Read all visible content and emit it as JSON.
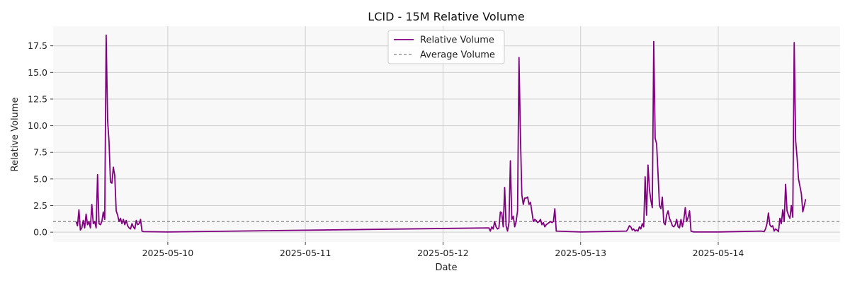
{
  "chart_data": {
    "type": "line",
    "title": "LCID - 15M Relative Volume",
    "xlabel": "Date",
    "ylabel": "Relative Volume",
    "x_type": "date",
    "xlim": [
      "2025-05-09 04:00",
      "2025-05-14 21:15"
    ],
    "ylim": [
      -0.92,
      19.34
    ],
    "x_ticks": [
      "2025-05-10",
      "2025-05-11",
      "2025-05-12",
      "2025-05-13",
      "2025-05-14"
    ],
    "y_ticks": [
      0.0,
      2.5,
      5.0,
      7.5,
      10.0,
      12.5,
      15.0,
      17.5
    ],
    "y_tick_labels": [
      "0.0",
      "2.5",
      "5.0",
      "7.5",
      "10.0",
      "12.5",
      "15.0",
      "17.5"
    ],
    "grid": true,
    "legend_position": "top-center",
    "series": [
      {
        "name": "Relative Volume",
        "color": "#800080",
        "style": "solid",
        "points": [
          [
            "2025-05-09 08:00",
            1.0
          ],
          [
            "2025-05-09 08:15",
            0.6
          ],
          [
            "2025-05-09 08:30",
            2.1
          ],
          [
            "2025-05-09 08:45",
            0.2
          ],
          [
            "2025-05-09 09:00",
            0.4
          ],
          [
            "2025-05-09 09:15",
            1.1
          ],
          [
            "2025-05-09 09:30",
            0.4
          ],
          [
            "2025-05-09 09:45",
            1.7
          ],
          [
            "2025-05-09 10:00",
            0.7
          ],
          [
            "2025-05-09 10:15",
            1.0
          ],
          [
            "2025-05-09 10:30",
            0.4
          ],
          [
            "2025-05-09 10:45",
            2.6
          ],
          [
            "2025-05-09 11:00",
            0.8
          ],
          [
            "2025-05-09 11:15",
            1.0
          ],
          [
            "2025-05-09 11:30",
            0.4
          ],
          [
            "2025-05-09 11:45",
            5.4
          ],
          [
            "2025-05-09 12:00",
            0.8
          ],
          [
            "2025-05-09 12:15",
            0.7
          ],
          [
            "2025-05-09 12:30",
            1.0
          ],
          [
            "2025-05-09 12:45",
            1.9
          ],
          [
            "2025-05-09 13:00",
            1.2
          ],
          [
            "2025-05-09 13:15",
            18.5
          ],
          [
            "2025-05-09 13:30",
            10.5
          ],
          [
            "2025-05-09 13:45",
            8.5
          ],
          [
            "2025-05-09 14:00",
            4.7
          ],
          [
            "2025-05-09 14:15",
            4.6
          ],
          [
            "2025-05-09 14:30",
            6.1
          ],
          [
            "2025-05-09 14:45",
            5.3
          ],
          [
            "2025-05-09 15:00",
            2.0
          ],
          [
            "2025-05-09 15:15",
            1.6
          ],
          [
            "2025-05-09 15:30",
            1.0
          ],
          [
            "2025-05-09 15:45",
            1.3
          ],
          [
            "2025-05-09 16:00",
            0.8
          ],
          [
            "2025-05-09 16:15",
            1.2
          ],
          [
            "2025-05-09 16:30",
            0.7
          ],
          [
            "2025-05-09 16:45",
            1.1
          ],
          [
            "2025-05-09 17:00",
            0.6
          ],
          [
            "2025-05-09 17:15",
            0.4
          ],
          [
            "2025-05-09 17:30",
            0.3
          ],
          [
            "2025-05-09 17:45",
            0.8
          ],
          [
            "2025-05-09 18:00",
            0.5
          ],
          [
            "2025-05-09 18:15",
            0.3
          ],
          [
            "2025-05-09 18:30",
            1.1
          ],
          [
            "2025-05-09 18:45",
            0.7
          ],
          [
            "2025-05-09 19:00",
            0.8
          ],
          [
            "2025-05-09 19:15",
            1.2
          ],
          [
            "2025-05-09 19:30",
            0.1
          ],
          [
            "2025-05-09 19:45",
            0.05
          ],
          [
            "2025-05-10 00:00",
            0.02
          ],
          [
            "2025-05-12 08:00",
            0.4
          ],
          [
            "2025-05-12 08:15",
            0.1
          ],
          [
            "2025-05-12 08:30",
            0.5
          ],
          [
            "2025-05-12 08:45",
            0.3
          ],
          [
            "2025-05-12 09:00",
            1.0
          ],
          [
            "2025-05-12 09:15",
            0.5
          ],
          [
            "2025-05-12 09:30",
            0.3
          ],
          [
            "2025-05-12 09:45",
            0.4
          ],
          [
            "2025-05-12 10:00",
            1.9
          ],
          [
            "2025-05-12 10:15",
            1.8
          ],
          [
            "2025-05-12 10:30",
            0.5
          ],
          [
            "2025-05-12 10:45",
            4.2
          ],
          [
            "2025-05-12 11:00",
            0.6
          ],
          [
            "2025-05-12 11:15",
            0.1
          ],
          [
            "2025-05-12 11:30",
            0.9
          ],
          [
            "2025-05-12 11:45",
            6.7
          ],
          [
            "2025-05-12 12:00",
            1.2
          ],
          [
            "2025-05-12 12:15",
            1.5
          ],
          [
            "2025-05-12 12:30",
            0.5
          ],
          [
            "2025-05-12 12:45",
            1.0
          ],
          [
            "2025-05-12 13:00",
            2.0
          ],
          [
            "2025-05-12 13:15",
            16.4
          ],
          [
            "2025-05-12 13:30",
            9.0
          ],
          [
            "2025-05-12 13:45",
            3.5
          ],
          [
            "2025-05-12 14:00",
            2.6
          ],
          [
            "2025-05-12 14:15",
            3.2
          ],
          [
            "2025-05-12 14:30",
            3.2
          ],
          [
            "2025-05-12 14:45",
            3.3
          ],
          [
            "2025-05-12 15:00",
            2.6
          ],
          [
            "2025-05-12 15:15",
            2.8
          ],
          [
            "2025-05-12 15:30",
            1.9
          ],
          [
            "2025-05-12 15:45",
            1.0
          ],
          [
            "2025-05-12 16:00",
            1.2
          ],
          [
            "2025-05-12 16:15",
            1.1
          ],
          [
            "2025-05-12 16:30",
            0.9
          ],
          [
            "2025-05-12 16:45",
            1.0
          ],
          [
            "2025-05-12 17:00",
            1.2
          ],
          [
            "2025-05-12 17:15",
            0.7
          ],
          [
            "2025-05-12 17:30",
            0.9
          ],
          [
            "2025-05-12 17:45",
            0.5
          ],
          [
            "2025-05-12 18:00",
            0.7
          ],
          [
            "2025-05-12 18:15",
            0.8
          ],
          [
            "2025-05-12 18:30",
            0.9
          ],
          [
            "2025-05-12 18:45",
            1.0
          ],
          [
            "2025-05-12 19:00",
            0.9
          ],
          [
            "2025-05-12 19:15",
            1.0
          ],
          [
            "2025-05-12 19:30",
            2.2
          ],
          [
            "2025-05-12 19:45",
            0.1
          ],
          [
            "2025-05-13 00:00",
            0.02
          ],
          [
            "2025-05-13 08:00",
            0.1
          ],
          [
            "2025-05-13 08:15",
            0.3
          ],
          [
            "2025-05-13 08:30",
            0.6
          ],
          [
            "2025-05-13 08:45",
            0.5
          ],
          [
            "2025-05-13 09:00",
            0.2
          ],
          [
            "2025-05-13 09:15",
            0.3
          ],
          [
            "2025-05-13 09:30",
            0.1
          ],
          [
            "2025-05-13 09:45",
            0.2
          ],
          [
            "2025-05-13 10:00",
            0.1
          ],
          [
            "2025-05-13 10:15",
            0.5
          ],
          [
            "2025-05-13 10:30",
            0.3
          ],
          [
            "2025-05-13 10:45",
            0.8
          ],
          [
            "2025-05-13 11:00",
            0.5
          ],
          [
            "2025-05-13 11:15",
            5.2
          ],
          [
            "2025-05-13 11:30",
            1.6
          ],
          [
            "2025-05-13 11:45",
            6.3
          ],
          [
            "2025-05-13 12:00",
            4.0
          ],
          [
            "2025-05-13 12:15",
            3.0
          ],
          [
            "2025-05-13 12:30",
            2.3
          ],
          [
            "2025-05-13 12:45",
            17.9
          ],
          [
            "2025-05-13 13:00",
            8.8
          ],
          [
            "2025-05-13 13:15",
            8.3
          ],
          [
            "2025-05-13 13:30",
            5.5
          ],
          [
            "2025-05-13 13:45",
            2.5
          ],
          [
            "2025-05-13 14:00",
            2.2
          ],
          [
            "2025-05-13 14:15",
            3.3
          ],
          [
            "2025-05-13 14:30",
            0.9
          ],
          [
            "2025-05-13 14:45",
            0.7
          ],
          [
            "2025-05-13 15:00",
            1.6
          ],
          [
            "2025-05-13 15:15",
            2.0
          ],
          [
            "2025-05-13 15:30",
            1.3
          ],
          [
            "2025-05-13 15:45",
            1.0
          ],
          [
            "2025-05-13 16:00",
            0.6
          ],
          [
            "2025-05-13 16:15",
            0.5
          ],
          [
            "2025-05-13 16:30",
            0.7
          ],
          [
            "2025-05-13 16:45",
            1.2
          ],
          [
            "2025-05-13 17:00",
            0.5
          ],
          [
            "2025-05-13 17:15",
            0.4
          ],
          [
            "2025-05-13 17:30",
            1.2
          ],
          [
            "2025-05-13 17:45",
            0.5
          ],
          [
            "2025-05-13 18:00",
            1.2
          ],
          [
            "2025-05-13 18:15",
            2.3
          ],
          [
            "2025-05-13 18:30",
            1.0
          ],
          [
            "2025-05-13 18:45",
            1.4
          ],
          [
            "2025-05-13 19:00",
            2.0
          ],
          [
            "2025-05-13 19:15",
            0.1
          ],
          [
            "2025-05-13 19:30",
            0.05
          ],
          [
            "2025-05-13 19:45",
            0.02
          ],
          [
            "2025-05-14 00:00",
            0.02
          ],
          [
            "2025-05-14 07:30",
            0.1
          ],
          [
            "2025-05-14 08:00",
            0.05
          ],
          [
            "2025-05-14 08:15",
            0.3
          ],
          [
            "2025-05-14 08:30",
            0.8
          ],
          [
            "2025-05-14 08:45",
            1.8
          ],
          [
            "2025-05-14 09:00",
            0.7
          ],
          [
            "2025-05-14 09:15",
            0.5
          ],
          [
            "2025-05-14 09:30",
            0.6
          ],
          [
            "2025-05-14 09:45",
            0.1
          ],
          [
            "2025-05-14 10:00",
            0.3
          ],
          [
            "2025-05-14 10:15",
            0.2
          ],
          [
            "2025-05-14 10:30",
            0.05
          ],
          [
            "2025-05-14 10:45",
            1.3
          ],
          [
            "2025-05-14 11:00",
            0.8
          ],
          [
            "2025-05-14 11:15",
            2.1
          ],
          [
            "2025-05-14 11:30",
            1.0
          ],
          [
            "2025-05-14 11:45",
            4.5
          ],
          [
            "2025-05-14 12:00",
            2.0
          ],
          [
            "2025-05-14 12:15",
            1.6
          ],
          [
            "2025-05-14 12:30",
            1.3
          ],
          [
            "2025-05-14 12:45",
            2.5
          ],
          [
            "2025-05-14 13:00",
            1.4
          ],
          [
            "2025-05-14 13:15",
            17.8
          ],
          [
            "2025-05-14 13:30",
            8.6
          ],
          [
            "2025-05-14 13:45",
            7.0
          ],
          [
            "2025-05-14 14:00",
            5.0
          ],
          [
            "2025-05-14 14:15",
            4.3
          ],
          [
            "2025-05-14 14:30",
            3.6
          ],
          [
            "2025-05-14 14:45",
            1.9
          ],
          [
            "2025-05-14 15:00",
            2.5
          ],
          [
            "2025-05-14 15:15",
            3.1
          ]
        ]
      },
      {
        "name": "Average Volume",
        "color": "#808080",
        "style": "dashed",
        "constant": 1.0
      }
    ]
  }
}
